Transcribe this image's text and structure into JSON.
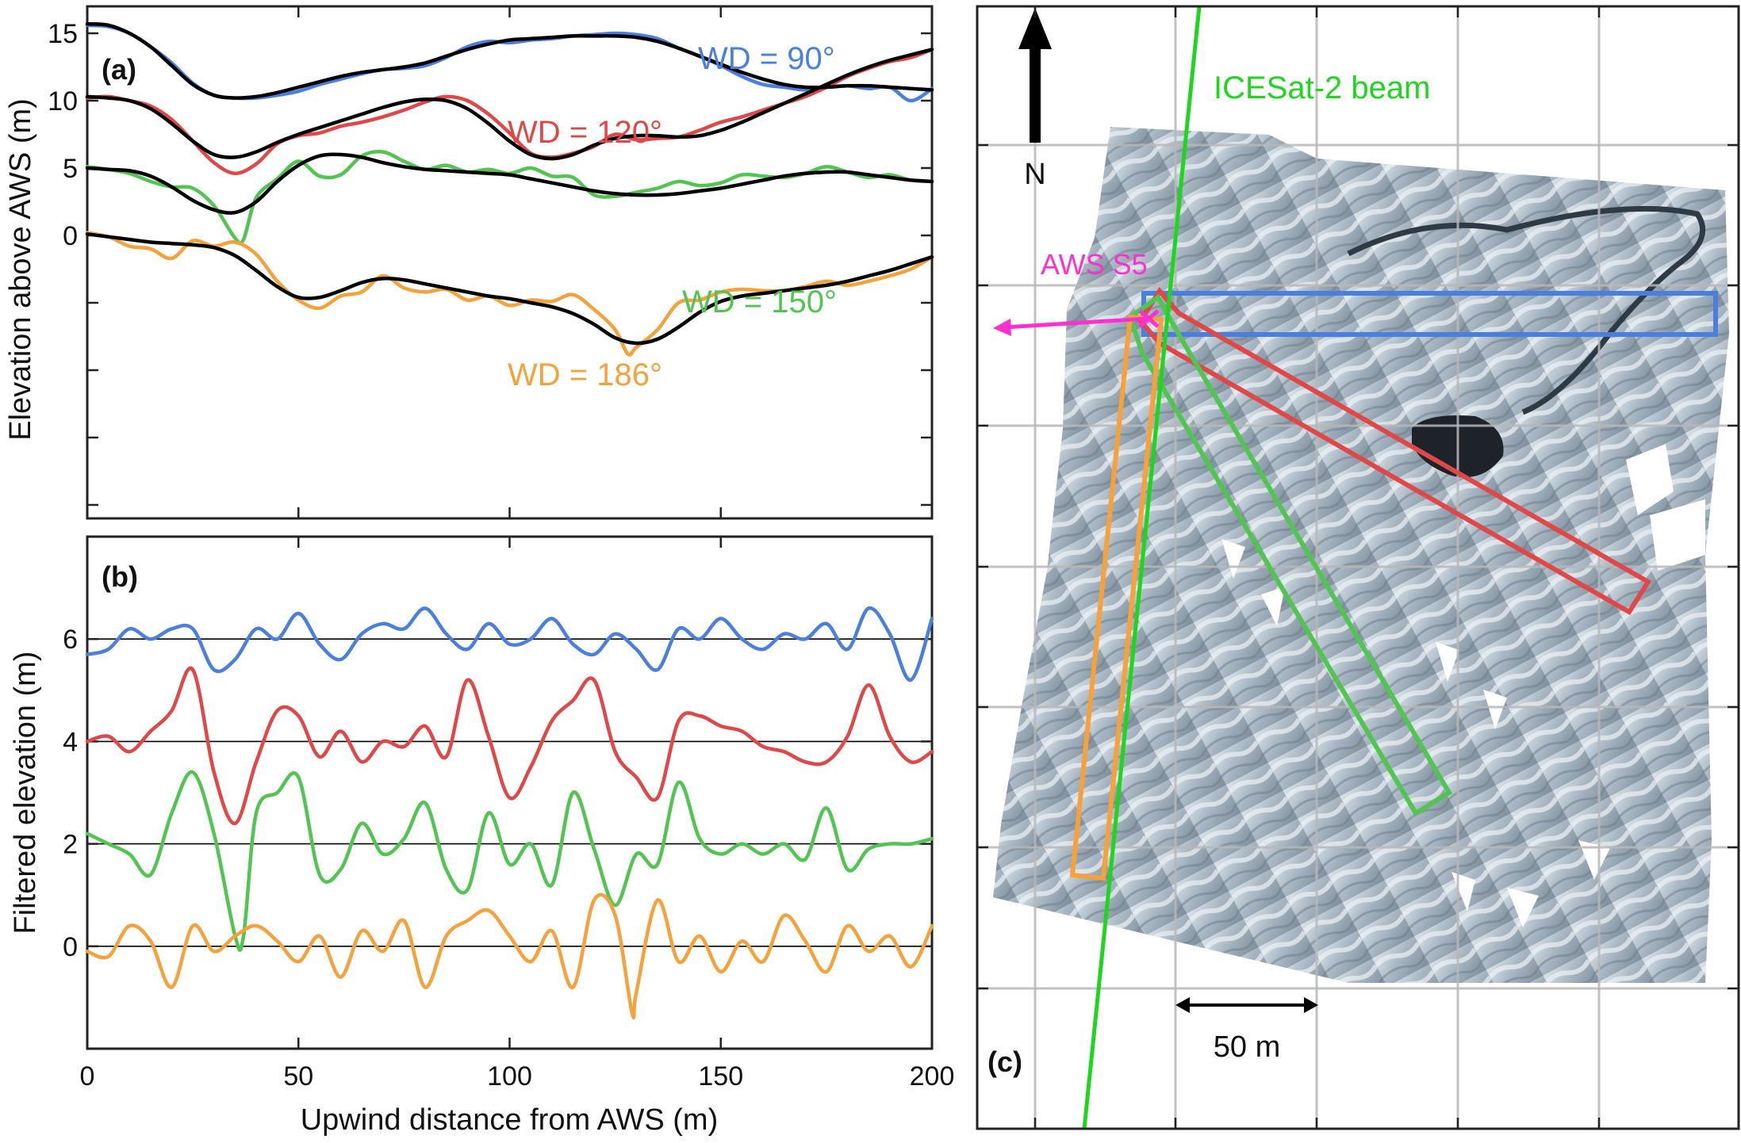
{
  "panels": {
    "a": {
      "label": "(a)"
    },
    "b": {
      "label": "(b)"
    },
    "c": {
      "label": "(c)"
    }
  },
  "colors": {
    "wd90": "#4a7fe0",
    "wd120": "#e04848",
    "wd150": "#52c452",
    "wd186": "#f5a13c",
    "fit": "#000000",
    "icesat": "#1fd61f",
    "aws": "#ff2fd0",
    "grid": "#c8c8c8"
  },
  "chart_data": [
    {
      "type": "line",
      "panel": "a",
      "title": "",
      "xlabel": "",
      "ylabel": "Elevation above AWS (m)",
      "xlim": [
        0,
        200
      ],
      "ylim": [
        -21,
        17
      ],
      "yticks": [
        0,
        5,
        10,
        15
      ],
      "grid": false,
      "series": [
        {
          "name": "WD = 90°",
          "color": "#4a7fe0",
          "x": [
            0,
            5,
            10,
            15,
            20,
            25,
            30,
            35,
            40,
            45,
            50,
            55,
            60,
            65,
            70,
            75,
            80,
            85,
            90,
            95,
            100,
            105,
            110,
            115,
            120,
            125,
            130,
            135,
            140,
            145,
            150,
            155,
            160,
            165,
            170,
            175,
            180,
            185,
            190,
            195,
            200
          ],
          "y": [
            15.6,
            15.5,
            15.0,
            14.0,
            12.8,
            11.3,
            10.4,
            10.2,
            10.2,
            10.4,
            10.7,
            11.2,
            11.6,
            12.0,
            12.3,
            12.4,
            12.6,
            13.2,
            14.0,
            14.4,
            14.3,
            14.5,
            14.6,
            14.8,
            14.9,
            15.0,
            14.9,
            14.6,
            13.9,
            13.3,
            12.6,
            11.8,
            11.2,
            11.0,
            10.8,
            11.0,
            11.1,
            10.9,
            11.0,
            10.0,
            10.9
          ]
        },
        {
          "name": "",
          "role": "smooth fit WD 90",
          "color": "#000000",
          "x": [
            0,
            5,
            10,
            15,
            20,
            25,
            30,
            35,
            40,
            45,
            50,
            55,
            60,
            65,
            70,
            75,
            80,
            85,
            90,
            95,
            100,
            105,
            110,
            115,
            120,
            125,
            130,
            135,
            140,
            145,
            150,
            155,
            160,
            165,
            170,
            175,
            180,
            185,
            190,
            195,
            200
          ],
          "y": [
            15.7,
            15.6,
            15.0,
            14.0,
            12.6,
            11.2,
            10.4,
            10.2,
            10.3,
            10.6,
            11.0,
            11.4,
            11.8,
            12.1,
            12.3,
            12.5,
            12.8,
            13.3,
            13.8,
            14.2,
            14.5,
            14.6,
            14.7,
            14.8,
            14.8,
            14.8,
            14.7,
            14.4,
            13.9,
            13.3,
            12.7,
            12.1,
            11.6,
            11.2,
            11.0,
            11.0,
            11.1,
            11.1,
            11.0,
            10.9,
            10.8
          ]
        },
        {
          "name": "WD = 120°",
          "color": "#e04848",
          "x": [
            0,
            5,
            10,
            15,
            20,
            25,
            30,
            35,
            40,
            45,
            50,
            55,
            60,
            65,
            70,
            75,
            80,
            85,
            90,
            95,
            100,
            105,
            110,
            115,
            120,
            125,
            130,
            135,
            140,
            145,
            150,
            155,
            160,
            165,
            170,
            175,
            180,
            185,
            190,
            195,
            200
          ],
          "y": [
            10.2,
            10.3,
            10.0,
            9.6,
            8.6,
            7.0,
            5.4,
            4.6,
            5.3,
            6.8,
            7.4,
            7.6,
            8.1,
            8.4,
            8.8,
            9.3,
            9.9,
            10.3,
            10.0,
            9.0,
            7.6,
            6.1,
            5.8,
            6.1,
            6.6,
            7.5,
            7.1,
            7.2,
            7.3,
            7.8,
            8.4,
            8.8,
            9.3,
            9.8,
            10.3,
            11.0,
            11.8,
            12.4,
            12.9,
            13.2,
            13.8
          ]
        },
        {
          "name": "",
          "role": "smooth fit WD 120",
          "color": "#000000",
          "x": [
            0,
            5,
            10,
            15,
            20,
            25,
            30,
            35,
            40,
            45,
            50,
            55,
            60,
            65,
            70,
            75,
            80,
            85,
            90,
            95,
            100,
            105,
            110,
            115,
            120,
            125,
            130,
            135,
            140,
            145,
            150,
            155,
            160,
            165,
            170,
            175,
            180,
            185,
            190,
            195,
            200
          ],
          "y": [
            10.3,
            10.2,
            10.0,
            9.4,
            8.3,
            7.0,
            6.0,
            5.8,
            6.2,
            6.9,
            7.5,
            8.0,
            8.5,
            9.0,
            9.5,
            9.9,
            10.1,
            10.0,
            9.4,
            8.3,
            7.0,
            6.0,
            5.7,
            6.0,
            6.7,
            7.2,
            7.4,
            7.4,
            7.3,
            7.4,
            7.8,
            8.4,
            9.1,
            9.8,
            10.5,
            11.2,
            11.9,
            12.5,
            13.0,
            13.4,
            13.8
          ]
        },
        {
          "name": "WD = 150°",
          "color": "#52c452",
          "x": [
            0,
            5,
            10,
            15,
            20,
            25,
            30,
            35,
            37,
            40,
            45,
            50,
            55,
            60,
            65,
            70,
            75,
            80,
            85,
            90,
            95,
            100,
            105,
            110,
            115,
            120,
            125,
            130,
            135,
            140,
            145,
            150,
            155,
            160,
            165,
            170,
            175,
            180,
            185,
            190,
            195,
            200
          ],
          "y": [
            5.1,
            4.9,
            4.6,
            4.0,
            3.6,
            3.5,
            2.2,
            -0.2,
            -0.3,
            2.8,
            4.2,
            5.5,
            4.4,
            4.5,
            5.9,
            6.2,
            5.5,
            4.9,
            5.2,
            4.7,
            4.9,
            4.6,
            5.0,
            4.4,
            4.3,
            3.0,
            2.9,
            3.2,
            3.5,
            4.0,
            3.7,
            3.9,
            4.5,
            4.4,
            4.3,
            4.6,
            5.1,
            4.7,
            4.3,
            4.5,
            4.1,
            4.0
          ]
        },
        {
          "name": "",
          "role": "smooth fit WD 150",
          "color": "#000000",
          "x": [
            0,
            5,
            10,
            15,
            20,
            25,
            30,
            35,
            40,
            45,
            50,
            55,
            60,
            65,
            70,
            75,
            80,
            85,
            90,
            95,
            100,
            105,
            110,
            115,
            120,
            125,
            130,
            135,
            140,
            145,
            150,
            155,
            160,
            165,
            170,
            175,
            180,
            185,
            190,
            195,
            200
          ],
          "y": [
            5.0,
            4.9,
            4.8,
            4.4,
            3.6,
            2.6,
            1.9,
            1.7,
            2.5,
            4.0,
            5.2,
            5.9,
            6.0,
            5.8,
            5.4,
            5.1,
            4.9,
            4.8,
            4.7,
            4.6,
            4.5,
            4.2,
            3.9,
            3.6,
            3.3,
            3.1,
            3.0,
            3.0,
            3.1,
            3.3,
            3.5,
            3.8,
            4.1,
            4.4,
            4.6,
            4.7,
            4.7,
            4.5,
            4.3,
            4.1,
            4.0
          ]
        },
        {
          "name": "WD = 186°",
          "color": "#f5a13c",
          "x": [
            0,
            5,
            10,
            15,
            20,
            25,
            30,
            35,
            40,
            45,
            50,
            55,
            60,
            65,
            70,
            75,
            80,
            85,
            90,
            95,
            100,
            105,
            110,
            115,
            120,
            125,
            128,
            130,
            135,
            140,
            145,
            150,
            155,
            160,
            165,
            170,
            175,
            180,
            185,
            190,
            195,
            200
          ],
          "y": [
            0.2,
            -0.1,
            -0.8,
            -1.0,
            -1.7,
            -0.4,
            -0.8,
            -0.5,
            -1.4,
            -3.4,
            -4.8,
            -5.4,
            -4.5,
            -4.2,
            -3.0,
            -3.9,
            -4.2,
            -4.0,
            -4.8,
            -4.5,
            -5.2,
            -4.8,
            -4.9,
            -4.4,
            -5.5,
            -7.0,
            -8.8,
            -8.3,
            -7.0,
            -5.0,
            -4.8,
            -4.2,
            -4.0,
            -4.1,
            -4.1,
            -3.8,
            -3.4,
            -3.7,
            -3.4,
            -3.0,
            -2.5,
            -1.6
          ]
        },
        {
          "name": "",
          "role": "smooth fit WD 186",
          "color": "#000000",
          "x": [
            0,
            5,
            10,
            15,
            20,
            25,
            30,
            35,
            40,
            45,
            50,
            55,
            60,
            65,
            70,
            75,
            80,
            85,
            90,
            95,
            100,
            105,
            110,
            115,
            120,
            125,
            130,
            135,
            140,
            145,
            150,
            155,
            160,
            165,
            170,
            175,
            180,
            185,
            190,
            195,
            200
          ],
          "y": [
            0.1,
            -0.1,
            -0.3,
            -0.5,
            -0.6,
            -0.7,
            -0.9,
            -1.5,
            -2.6,
            -3.8,
            -4.6,
            -4.6,
            -4.1,
            -3.5,
            -3.2,
            -3.3,
            -3.6,
            -3.9,
            -4.2,
            -4.5,
            -4.7,
            -5.0,
            -5.3,
            -5.8,
            -6.6,
            -7.6,
            -8.0,
            -7.7,
            -6.8,
            -5.7,
            -4.9,
            -4.5,
            -4.3,
            -4.1,
            -3.9,
            -3.7,
            -3.4,
            -3.0,
            -2.6,
            -2.1,
            -1.6
          ]
        }
      ]
    },
    {
      "type": "line",
      "panel": "b",
      "title": "",
      "xlabel": "Upwind distance from AWS (m)",
      "ylabel": "Filtered elevation (m)",
      "xlim": [
        0,
        200
      ],
      "xticks": [
        0,
        50,
        100,
        150,
        200
      ],
      "ylim": [
        -2,
        8
      ],
      "yticks": [
        0,
        2,
        4,
        6
      ],
      "baselines": [
        0,
        2,
        4,
        6
      ],
      "grid": false,
      "series": [
        {
          "name": "WD = 90°",
          "color": "#4a7fe0",
          "x": [
            0,
            5,
            10,
            15,
            20,
            25,
            30,
            35,
            40,
            45,
            50,
            55,
            60,
            65,
            70,
            75,
            80,
            85,
            90,
            95,
            100,
            105,
            110,
            115,
            120,
            125,
            130,
            135,
            140,
            145,
            150,
            155,
            160,
            165,
            170,
            175,
            180,
            185,
            190,
            195,
            200
          ],
          "y": [
            5.7,
            5.8,
            6.2,
            6.0,
            6.2,
            6.2,
            5.4,
            5.6,
            6.2,
            6.0,
            6.5,
            5.9,
            5.6,
            6.1,
            6.3,
            6.2,
            6.6,
            6.1,
            5.8,
            6.3,
            5.9,
            6.0,
            6.4,
            5.9,
            5.7,
            6.1,
            5.8,
            5.4,
            6.2,
            6.0,
            6.4,
            6.0,
            5.8,
            6.1,
            6.0,
            6.3,
            5.8,
            6.6,
            6.1,
            5.2,
            6.4
          ]
        },
        {
          "name": "WD = 120°",
          "color": "#e04848",
          "x": [
            0,
            5,
            10,
            15,
            20,
            25,
            30,
            35,
            40,
            45,
            50,
            55,
            60,
            65,
            70,
            75,
            80,
            85,
            90,
            95,
            100,
            105,
            110,
            115,
            120,
            125,
            130,
            135,
            140,
            145,
            150,
            155,
            160,
            165,
            170,
            175,
            180,
            185,
            190,
            195,
            200
          ],
          "y": [
            4.0,
            4.1,
            3.8,
            4.2,
            4.6,
            5.4,
            3.4,
            2.4,
            3.6,
            4.6,
            4.5,
            3.7,
            4.2,
            3.6,
            4.0,
            3.9,
            4.3,
            3.7,
            5.2,
            4.1,
            2.9,
            3.5,
            4.4,
            4.8,
            5.2,
            3.8,
            3.3,
            2.9,
            4.4,
            4.5,
            4.3,
            4.2,
            3.9,
            3.8,
            3.6,
            3.6,
            4.1,
            5.1,
            4.1,
            3.6,
            3.8
          ]
        },
        {
          "name": "WD = 150°",
          "color": "#52c452",
          "x": [
            0,
            5,
            10,
            15,
            20,
            25,
            30,
            35,
            37,
            40,
            45,
            50,
            55,
            60,
            65,
            70,
            75,
            80,
            85,
            90,
            95,
            100,
            105,
            110,
            115,
            120,
            125,
            130,
            135,
            140,
            145,
            150,
            155,
            160,
            165,
            170,
            175,
            180,
            185,
            190,
            195,
            200
          ],
          "y": [
            2.2,
            2.0,
            1.8,
            1.4,
            2.6,
            3.4,
            2.2,
            0.2,
            0.2,
            2.6,
            3.0,
            3.3,
            1.4,
            1.5,
            2.4,
            1.8,
            2.1,
            2.8,
            1.5,
            1.1,
            2.6,
            1.6,
            2.0,
            1.2,
            3.0,
            1.9,
            0.8,
            1.8,
            1.6,
            3.2,
            2.1,
            1.8,
            2.0,
            1.8,
            2.0,
            1.7,
            2.7,
            1.5,
            1.9,
            2.0,
            2.0,
            2.1
          ]
        },
        {
          "name": "WD = 186°",
          "color": "#f5a13c",
          "x": [
            0,
            5,
            10,
            15,
            20,
            25,
            30,
            35,
            40,
            45,
            50,
            55,
            60,
            65,
            70,
            75,
            80,
            85,
            90,
            95,
            100,
            105,
            110,
            115,
            120,
            125,
            129,
            130,
            135,
            140,
            145,
            150,
            155,
            160,
            165,
            170,
            175,
            180,
            185,
            190,
            195,
            200
          ],
          "y": [
            -0.1,
            -0.2,
            0.4,
            0.1,
            -0.8,
            0.4,
            -0.1,
            0.2,
            0.4,
            0.1,
            -0.3,
            0.2,
            -0.6,
            0.3,
            -0.1,
            0.5,
            -0.8,
            0.2,
            0.5,
            0.7,
            0.2,
            -0.3,
            0.3,
            -0.8,
            0.9,
            0.6,
            -1.3,
            -0.9,
            0.9,
            -0.3,
            0.2,
            -0.5,
            0.1,
            -0.3,
            0.6,
            0.1,
            -0.5,
            0.4,
            -0.1,
            0.2,
            -0.4,
            0.4
          ]
        }
      ]
    }
  ],
  "map": {
    "north_label": "N",
    "icesat_label": "ICESat-2 beam",
    "aws_label": "AWS S5",
    "scale_label": "50 m"
  }
}
